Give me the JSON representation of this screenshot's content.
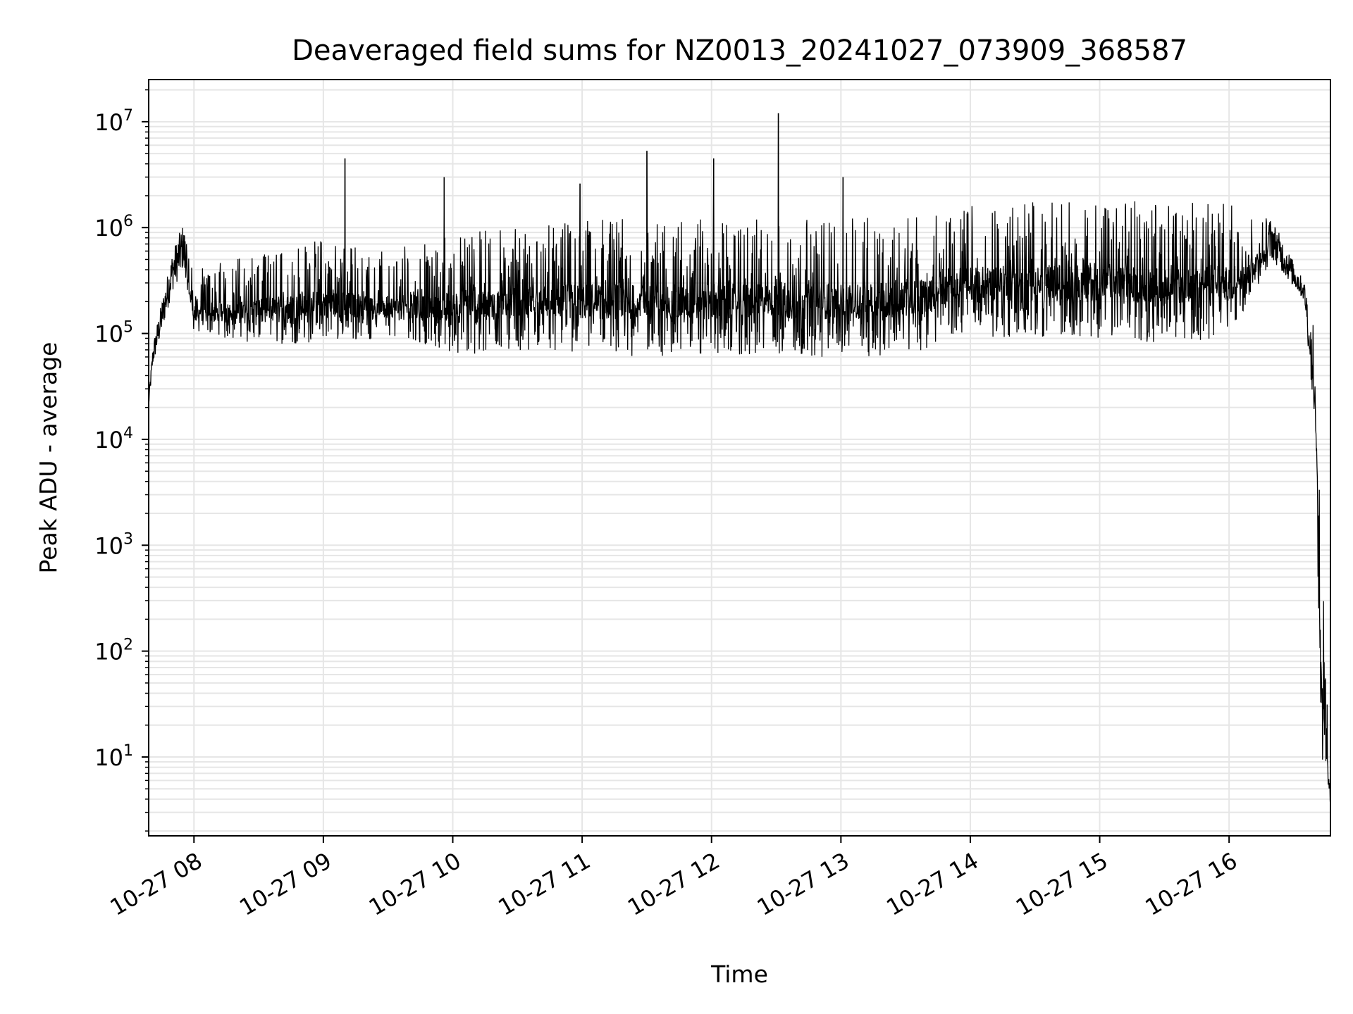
{
  "chart_data": {
    "type": "line",
    "title": "Deaveraged field sums for NZ0013_20241027_073909_368587",
    "xlabel": "Time",
    "ylabel": "Peak ADU - average",
    "yscale": "log",
    "ylim": [
      1.8,
      25000000
    ],
    "xlim": [
      "2024-10-27 07:39",
      "2024-10-27 16:47"
    ],
    "grid": true,
    "x_ticks": [
      {
        "t": "2024-10-27 08:00",
        "label": "10-27 08"
      },
      {
        "t": "2024-10-27 09:00",
        "label": "10-27 09"
      },
      {
        "t": "2024-10-27 10:00",
        "label": "10-27 10"
      },
      {
        "t": "2024-10-27 11:00",
        "label": "10-27 11"
      },
      {
        "t": "2024-10-27 12:00",
        "label": "10-27 12"
      },
      {
        "t": "2024-10-27 13:00",
        "label": "10-27 13"
      },
      {
        "t": "2024-10-27 14:00",
        "label": "10-27 14"
      },
      {
        "t": "2024-10-27 15:00",
        "label": "10-27 15"
      },
      {
        "t": "2024-10-27 16:00",
        "label": "10-27 16"
      }
    ],
    "y_ticks": [
      {
        "base": "10",
        "exp": "1",
        "value": 10
      },
      {
        "base": "10",
        "exp": "2",
        "value": 100
      },
      {
        "base": "10",
        "exp": "3",
        "value": 1000
      },
      {
        "base": "10",
        "exp": "4",
        "value": 10000
      },
      {
        "base": "10",
        "exp": "5",
        "value": 100000
      },
      {
        "base": "10",
        "exp": "6",
        "value": 1000000
      },
      {
        "base": "10",
        "exp": "7",
        "value": 10000000
      }
    ],
    "series": [
      {
        "color": "#000000",
        "envelope": [
          {
            "t": "2024-10-27 07:39",
            "low": 20000,
            "high": 25000
          },
          {
            "t": "2024-10-27 07:41",
            "low": 50000,
            "high": 80000
          },
          {
            "t": "2024-10-27 07:45",
            "low": 100000,
            "high": 200000
          },
          {
            "t": "2024-10-27 07:50",
            "low": 250000,
            "high": 600000
          },
          {
            "t": "2024-10-27 07:55",
            "low": 400000,
            "high": 1100000
          },
          {
            "t": "2024-10-27 08:00",
            "low": 100000,
            "high": 400000
          },
          {
            "t": "2024-10-27 08:30",
            "low": 80000,
            "high": 600000
          },
          {
            "t": "2024-10-27 09:00",
            "low": 80000,
            "high": 800000
          },
          {
            "t": "2024-10-27 09:30",
            "low": 90000,
            "high": 600000
          },
          {
            "t": "2024-10-27 10:00",
            "low": 60000,
            "high": 900000
          },
          {
            "t": "2024-10-27 10:30",
            "low": 70000,
            "high": 1000000
          },
          {
            "t": "2024-10-27 11:00",
            "low": 60000,
            "high": 1200000
          },
          {
            "t": "2024-10-27 11:30",
            "low": 60000,
            "high": 1200000
          },
          {
            "t": "2024-10-27 12:00",
            "low": 60000,
            "high": 1200000
          },
          {
            "t": "2024-10-27 12:30",
            "low": 60000,
            "high": 1200000
          },
          {
            "t": "2024-10-27 13:00",
            "low": 60000,
            "high": 1200000
          },
          {
            "t": "2024-10-27 13:30",
            "low": 60000,
            "high": 1300000
          },
          {
            "t": "2024-10-27 14:00",
            "low": 90000,
            "high": 1700000
          },
          {
            "t": "2024-10-27 14:30",
            "low": 90000,
            "high": 1800000
          },
          {
            "t": "2024-10-27 15:00",
            "low": 90000,
            "high": 1800000
          },
          {
            "t": "2024-10-27 15:30",
            "low": 80000,
            "high": 1800000
          },
          {
            "t": "2024-10-27 16:00",
            "low": 90000,
            "high": 1700000
          },
          {
            "t": "2024-10-27 16:20",
            "low": 500000,
            "high": 1200000
          },
          {
            "t": "2024-10-27 16:35",
            "low": 200000,
            "high": 300000
          },
          {
            "t": "2024-10-27 16:40",
            "low": 10000,
            "high": 100000
          },
          {
            "t": "2024-10-27 16:43",
            "low": 4,
            "high": 1000
          },
          {
            "t": "2024-10-27 16:47",
            "low": 3.8,
            "high": 4
          }
        ],
        "spikes": [
          {
            "t": "2024-10-27 09:10",
            "value": 4500000
          },
          {
            "t": "2024-10-27 09:56",
            "value": 3000000
          },
          {
            "t": "2024-10-27 11:30",
            "value": 5300000
          },
          {
            "t": "2024-10-27 12:01",
            "value": 4500000
          },
          {
            "t": "2024-10-27 12:31",
            "value": 12000000
          },
          {
            "t": "2024-10-27 13:01",
            "value": 3000000
          },
          {
            "t": "2024-10-27 10:59",
            "value": 2600000
          }
        ]
      }
    ]
  }
}
